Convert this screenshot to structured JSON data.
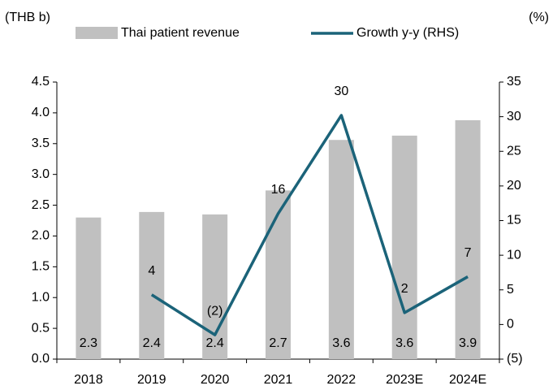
{
  "chart_data": {
    "type": "combo",
    "y_label": "(THB b)",
    "y2_label": "(%)",
    "categories": [
      "2018",
      "2019",
      "2020",
      "2021",
      "2022",
      "2023E",
      "2024E"
    ],
    "series": [
      {
        "name": "Thai patient revenue",
        "type": "bar",
        "color": "#c0c0c0",
        "values": [
          2.3,
          2.39,
          2.35,
          2.74,
          3.56,
          3.63,
          3.88
        ],
        "value_labels": [
          "2.3",
          "2.4",
          "2.4",
          "2.7",
          "3.6",
          "3.6",
          "3.9"
        ]
      },
      {
        "name": "Growth y-y (RHS)",
        "type": "line",
        "axis": "y2",
        "color": "#1b6379",
        "values": [
          null,
          4.3,
          -1.5,
          16,
          30.2,
          1.7,
          6.9
        ],
        "value_labels": [
          null,
          "4",
          "(2)",
          "16",
          "30",
          "2",
          "7"
        ]
      }
    ],
    "ylim": [
      0,
      4.5
    ],
    "yticks": [
      {
        "value": 0,
        "label": "0.0"
      },
      0.5,
      {
        "value": 1,
        "label": "1.0"
      },
      1.5,
      {
        "value": 2,
        "label": "2.0"
      },
      2.5,
      {
        "value": 3,
        "label": "3.0"
      },
      3.5,
      {
        "value": 4,
        "label": "4.0"
      },
      4.5
    ],
    "y2lim": [
      -5,
      35
    ],
    "y2ticks": [
      {
        "value": -5,
        "label": "(5)"
      },
      0,
      5,
      10,
      15,
      20,
      25,
      30,
      35
    ],
    "grid": false,
    "legend": "top"
  }
}
